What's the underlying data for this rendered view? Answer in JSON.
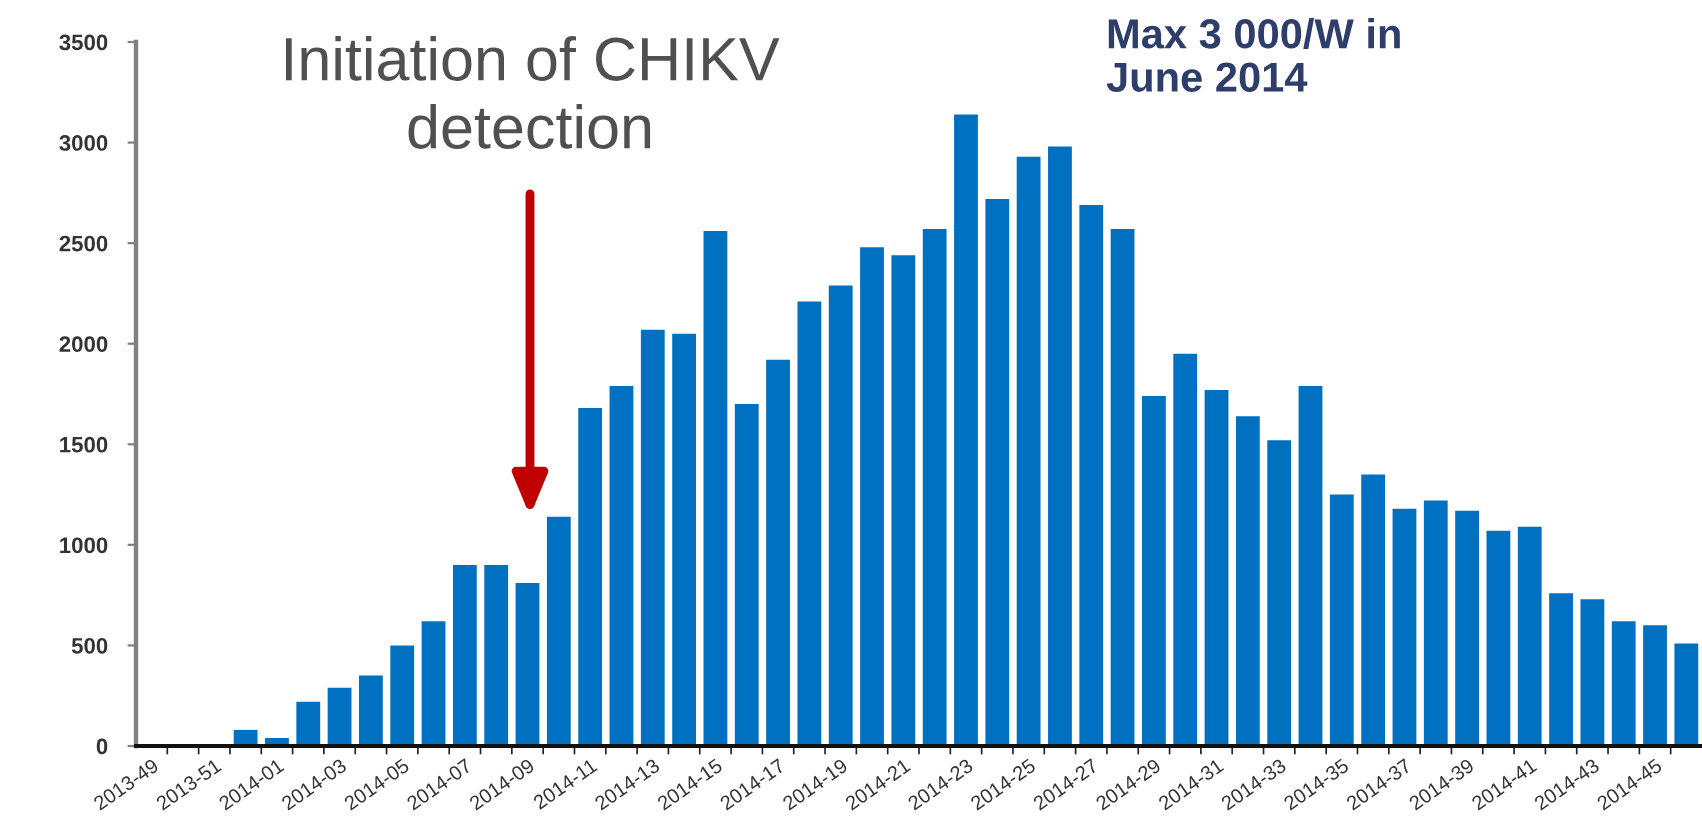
{
  "chart_data": {
    "type": "bar",
    "categories": [
      "2013-49",
      null,
      "2013-51",
      null,
      "2014-01",
      null,
      "2014-03",
      null,
      "2014-05",
      null,
      "2014-07",
      null,
      "2014-09",
      null,
      "2014-11",
      null,
      "2014-13",
      null,
      "2014-15",
      null,
      "2014-17",
      null,
      "2014-19",
      null,
      "2014-21",
      null,
      "2014-23",
      null,
      "2014-25",
      null,
      "2014-27",
      null,
      "2014-29",
      null,
      "2014-31",
      null,
      "2014-33",
      null,
      "2014-35",
      null,
      "2014-37",
      null,
      "2014-39",
      null,
      "2014-41",
      null,
      "2014-43",
      null,
      "2014-45",
      null
    ],
    "values": [
      null,
      null,
      null,
      80,
      40,
      220,
      290,
      350,
      500,
      620,
      900,
      900,
      810,
      1140,
      1680,
      1790,
      2070,
      2050,
      2560,
      1700,
      1920,
      2210,
      2290,
      2480,
      2440,
      2570,
      3140,
      2720,
      2930,
      2980,
      2690,
      2570,
      1740,
      1950,
      1770,
      1640,
      1520,
      1790,
      1250,
      1350,
      1180,
      1220,
      1170,
      1070,
      1090,
      760,
      730,
      620,
      600,
      510
    ],
    "color": "#0070c0",
    "ylim": [
      0,
      3500
    ],
    "yticks": [
      0,
      500,
      1000,
      1500,
      2000,
      2500,
      3000,
      3500
    ],
    "annotations": [
      "Initiation of CHIKV\ndetection",
      "Max 3 000/W in\nJune 2014"
    ]
  }
}
